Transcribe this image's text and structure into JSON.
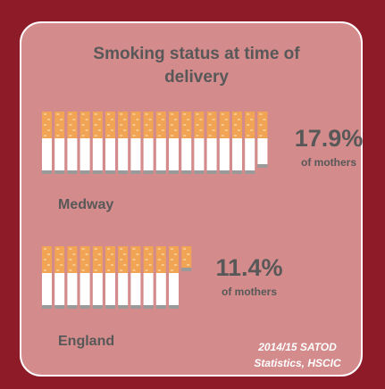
{
  "chart_data": {
    "type": "pictogram",
    "title": "Smoking status at time of delivery",
    "categories": [
      "Medway",
      "England"
    ],
    "values": [
      17.9,
      11.4
    ],
    "value_labels": [
      "17.9%",
      "11.4%"
    ],
    "value_sublabel": "of mothers",
    "source": "2014/15 SATOD Statistics, HSCIC",
    "colors": {
      "filter": "#f2a455",
      "paper": "#ffffff",
      "ash": "#9a9a9a"
    }
  }
}
